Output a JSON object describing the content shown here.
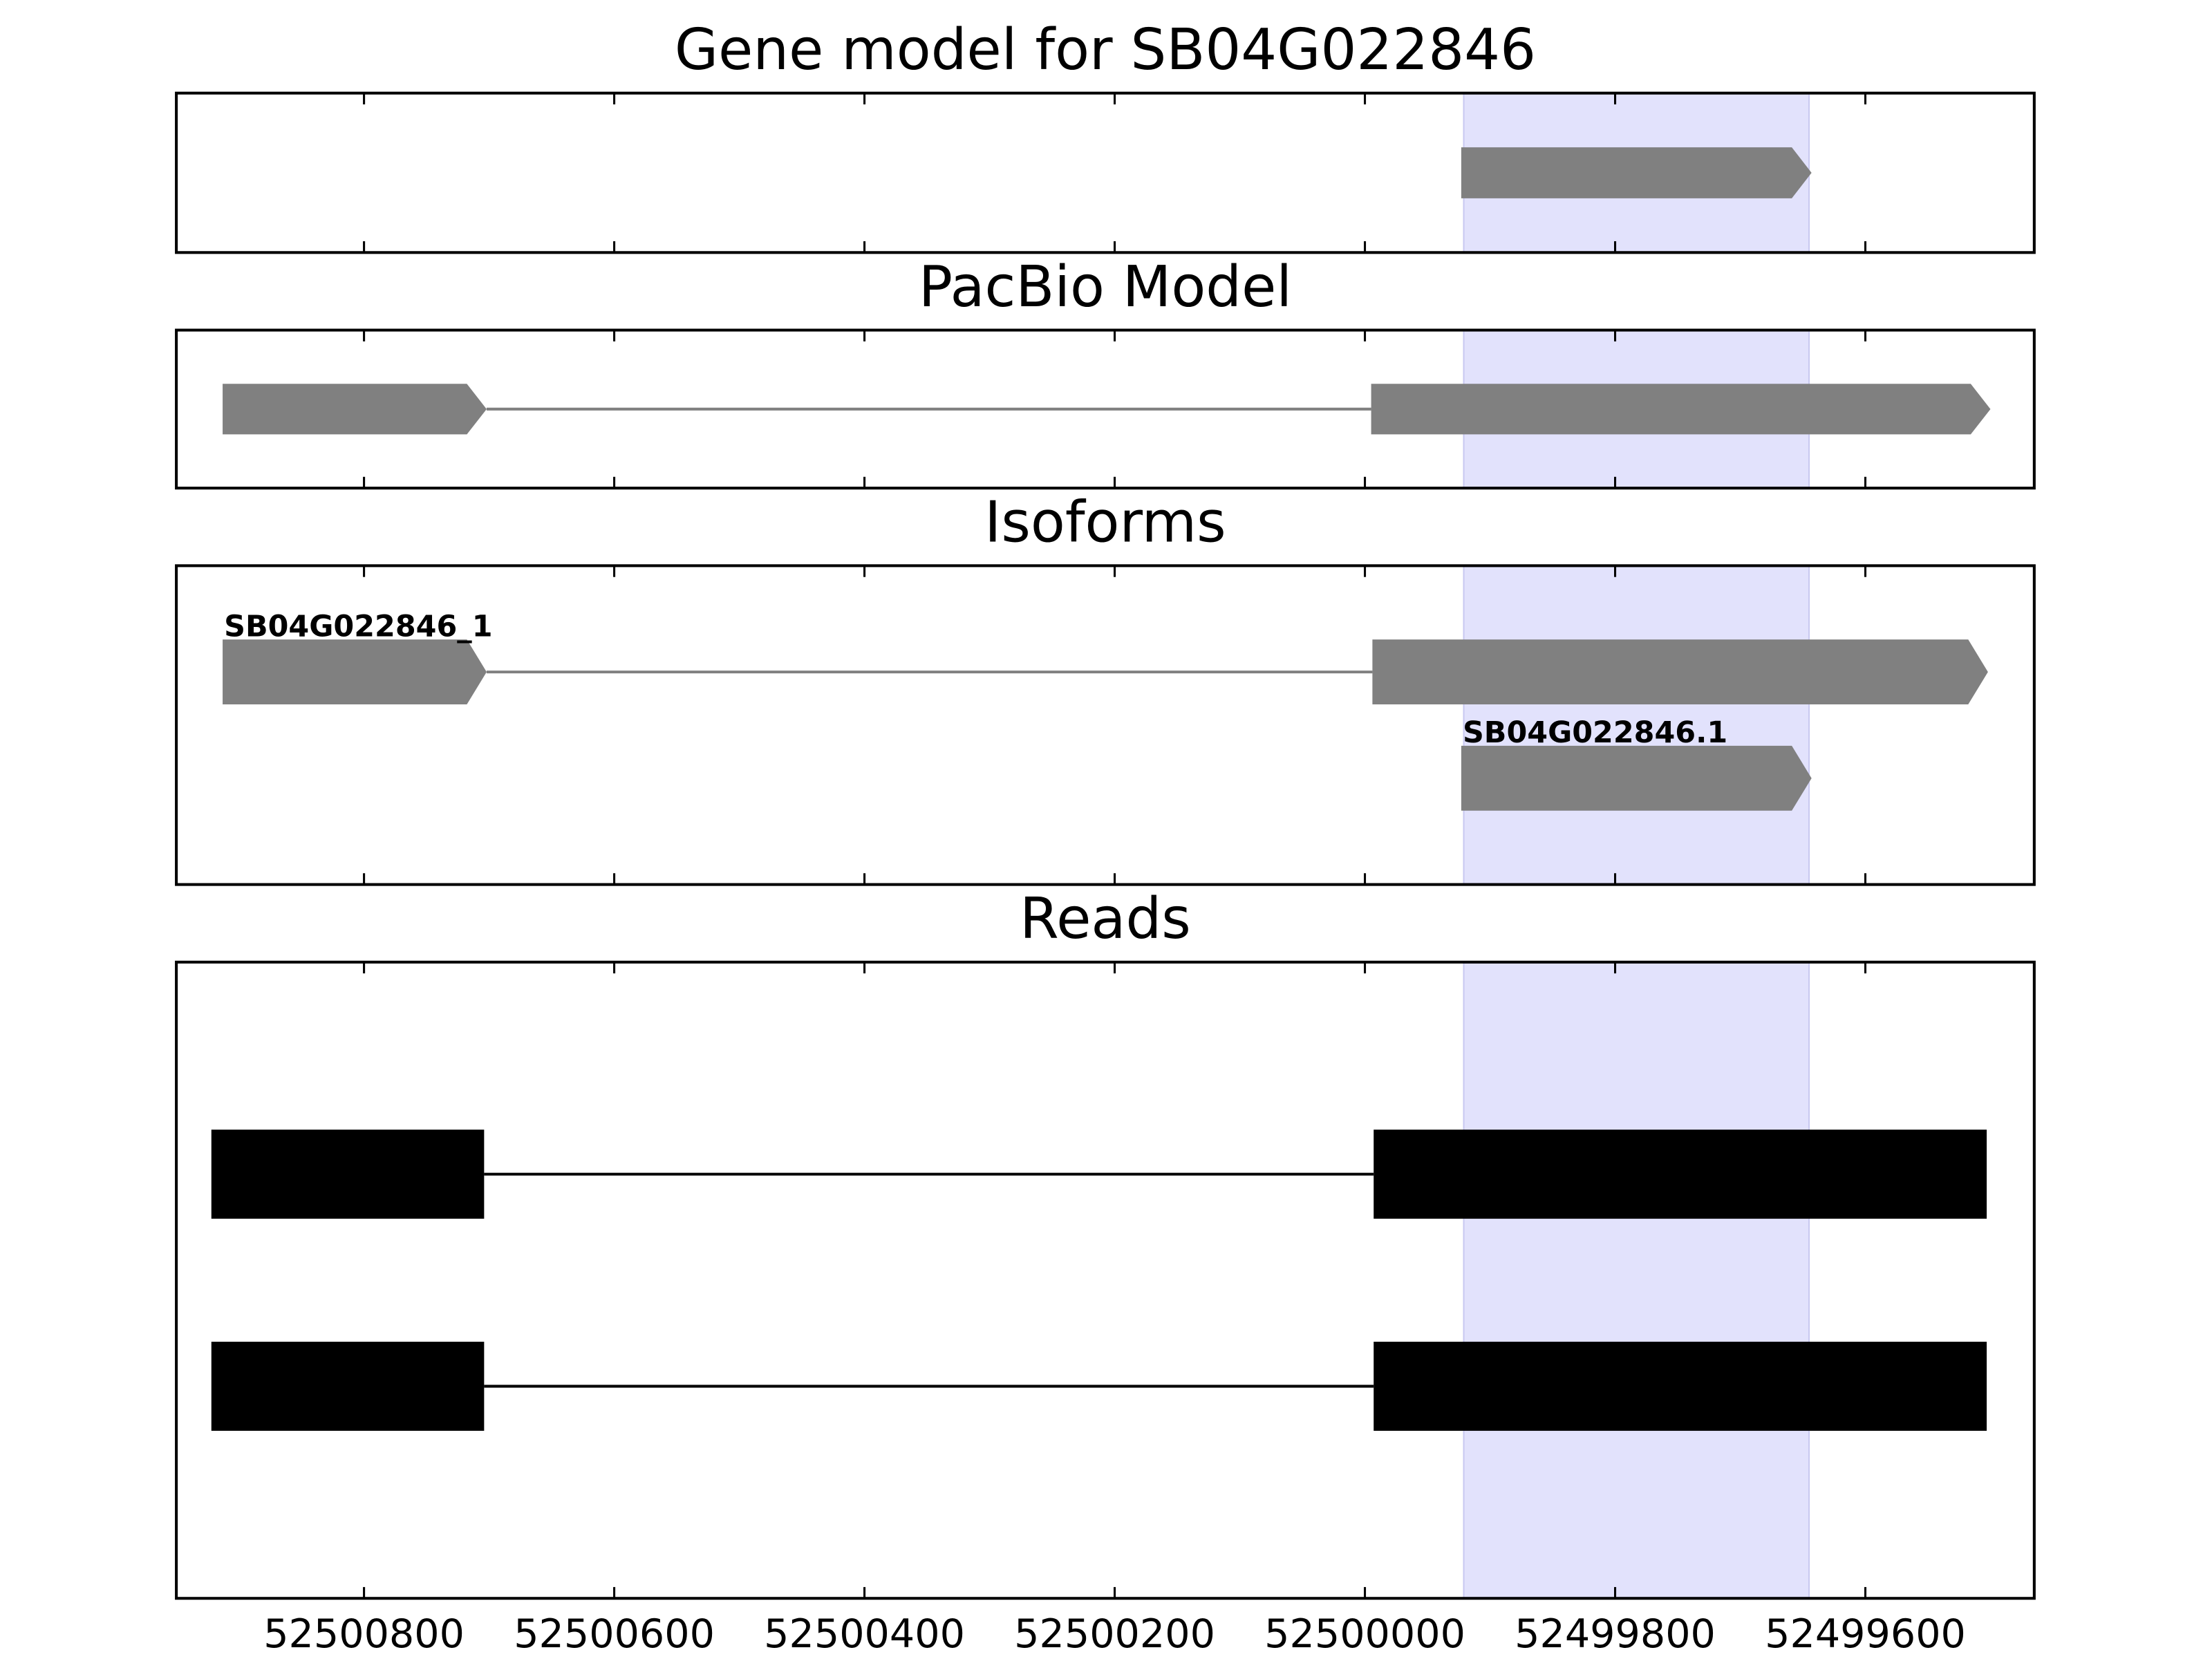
{
  "chart_data": [
    {
      "type": "gene-model",
      "title": "Gene model for SB04G022846",
      "xlim": [
        52500950,
        52499465
      ],
      "xticks": [
        52500800,
        52500600,
        52500400,
        52500200,
        52500000,
        52499800,
        52499600
      ],
      "highlight": [
        52499921,
        52499645
      ],
      "highlight_color": "#e2e2fc",
      "shape": "arrow",
      "color": "#808080",
      "features": [
        {
          "exons": [
            [
              52499923,
              52499643
            ]
          ]
        }
      ]
    },
    {
      "type": "gene-model",
      "title": "PacBio Model",
      "xlim": [
        52500950,
        52499465
      ],
      "xticks": [
        52500800,
        52500600,
        52500400,
        52500200,
        52500000,
        52499800,
        52499600
      ],
      "highlight": [
        52499921,
        52499645
      ],
      "highlight_color": "#e2e2fc",
      "shape": "arrow",
      "color": "#808080",
      "features": [
        {
          "exons": [
            [
              52500913,
              52500702
            ],
            [
              52499995,
              52499500
            ]
          ]
        }
      ]
    },
    {
      "type": "gene-model",
      "title": "Isoforms",
      "xlim": [
        52500950,
        52499465
      ],
      "xticks": [
        52500800,
        52500600,
        52500400,
        52500200,
        52500000,
        52499800,
        52499600
      ],
      "highlight": [
        52499921,
        52499645
      ],
      "highlight_color": "#e2e2fc",
      "shape": "arrow",
      "color": "#808080",
      "features": [
        {
          "name": "SB04G022846_1",
          "exons": [
            [
              52500913,
              52500702
            ],
            [
              52499994,
              52499502
            ]
          ]
        },
        {
          "name": "SB04G022846.1",
          "exons": [
            [
              52499923,
              52499643
            ]
          ]
        }
      ]
    },
    {
      "type": "gene-model",
      "title": "Reads",
      "xlim": [
        52500950,
        52499465
      ],
      "xticks": [
        52500800,
        52500600,
        52500400,
        52500200,
        52500000,
        52499800,
        52499600
      ],
      "highlight": [
        52499921,
        52499645
      ],
      "highlight_color": "#e2e2fc",
      "shape": "rect",
      "color": "#000000",
      "features": [
        {
          "exons": [
            [
              52500922,
              52500704
            ],
            [
              52499993,
              52499503
            ]
          ]
        },
        {
          "exons": [
            [
              52500922,
              52500704
            ],
            [
              52499993,
              52499503
            ]
          ]
        }
      ]
    }
  ]
}
